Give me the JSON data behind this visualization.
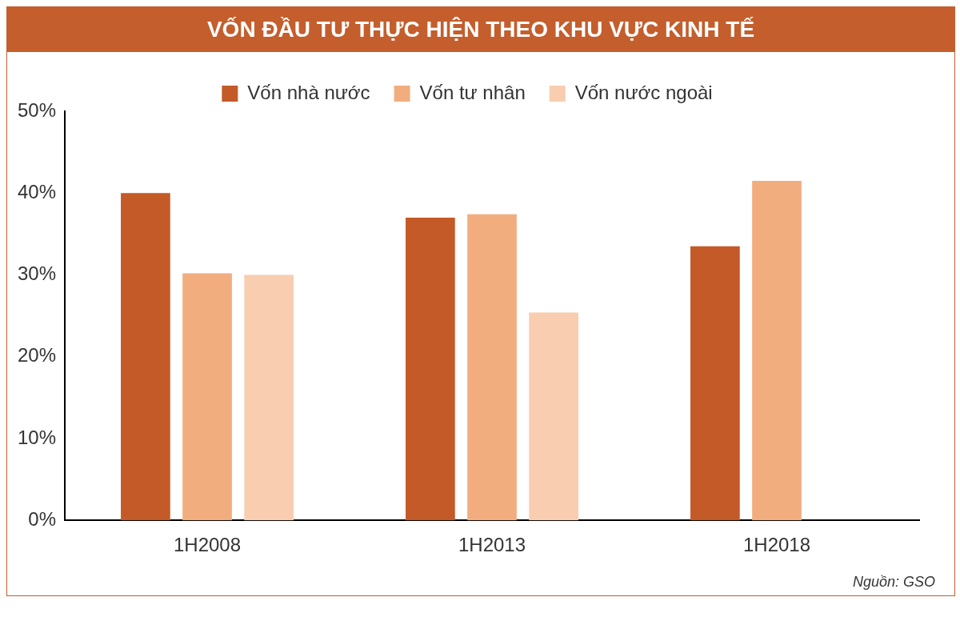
{
  "chart_data": {
    "type": "bar",
    "title": "VỐN ĐẦU TƯ THỰC HIỆN THEO KHU VỰC KINH TẾ",
    "categories": [
      "1H2008",
      "1H2013",
      "1H2018"
    ],
    "series": [
      {
        "name": "Vốn nhà nước",
        "color": "#c45a27",
        "values": [
          40,
          37,
          33.5
        ]
      },
      {
        "name": "Vốn tư nhân",
        "color": "#f2ad7e",
        "values": [
          30.2,
          37.4,
          41.5
        ]
      },
      {
        "name": "Vốn nước ngoài",
        "color": "#f8cdb0",
        "values": [
          30,
          25.4,
          null
        ]
      }
    ],
    "ylim": [
      0,
      50
    ],
    "yticks": [
      {
        "value": 0,
        "label": "0%"
      },
      {
        "value": 10,
        "label": "10%"
      },
      {
        "value": 20,
        "label": "20%"
      },
      {
        "value": 30,
        "label": "30%"
      },
      {
        "value": 40,
        "label": "40%"
      },
      {
        "value": 50,
        "label": "50%"
      }
    ],
    "grid": false,
    "legend": "top",
    "annotations": [
      "Nguồn: GSO"
    ]
  }
}
